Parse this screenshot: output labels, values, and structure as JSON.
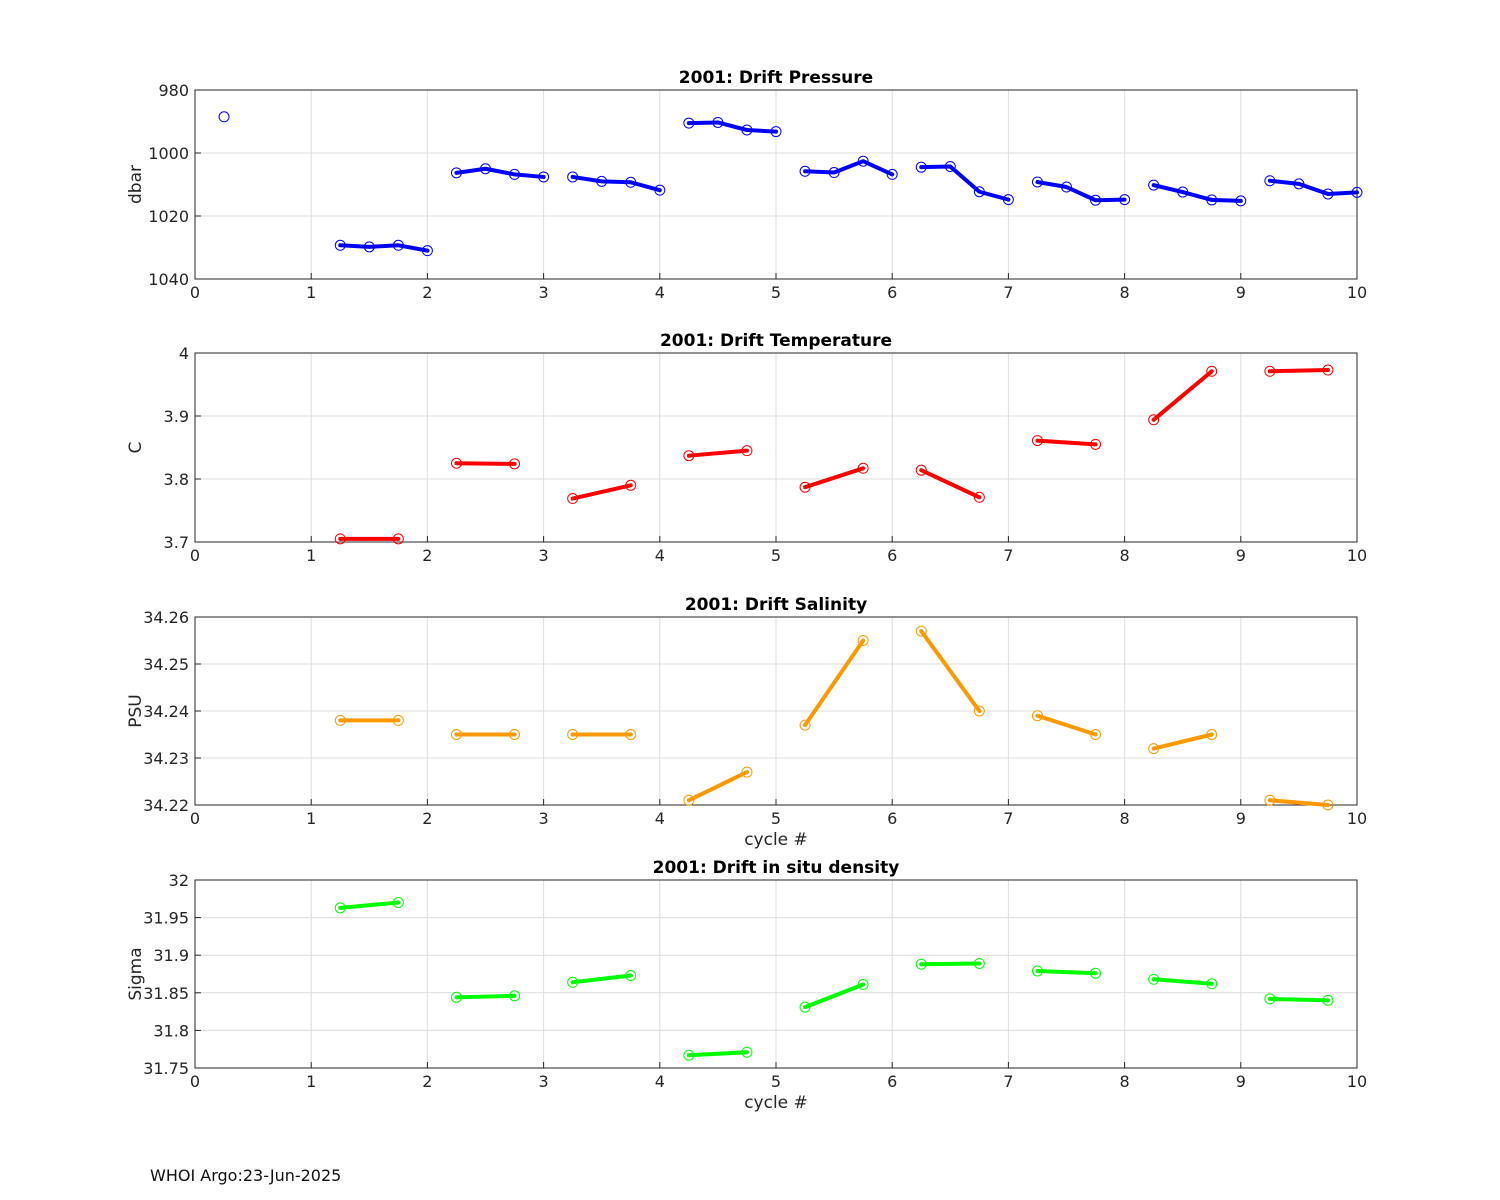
{
  "footer": {
    "text": "WHOI Argo:23-Jun-2025"
  },
  "chart_data": [
    {
      "type": "line",
      "title": "2001: Drift Pressure",
      "xlabel": "",
      "ylabel": "dbar",
      "xlim": [
        0,
        10
      ],
      "ylim": [
        980,
        1040
      ],
      "y_reversed": true,
      "xticks": [
        "0",
        "1",
        "2",
        "3",
        "4",
        "5",
        "6",
        "7",
        "8",
        "9",
        "10"
      ],
      "yticks": [
        "980",
        "1000",
        "1020",
        "1040"
      ],
      "ytick_values": [
        980,
        1000,
        1020,
        1040
      ],
      "grid": true,
      "color": "#0000ff",
      "segments": [
        {
          "x": [
            0.25
          ],
          "y": [
            988.5
          ]
        },
        {
          "x": [
            1.25,
            1.5,
            1.75,
            2.0
          ],
          "y": [
            1029.3,
            1029.8,
            1029.3,
            1031.0
          ]
        },
        {
          "x": [
            2.25,
            2.5,
            2.75,
            3.0
          ],
          "y": [
            1006.3,
            1005.0,
            1006.8,
            1007.6
          ]
        },
        {
          "x": [
            3.25,
            3.5,
            3.75,
            4.0
          ],
          "y": [
            1007.6,
            1009.0,
            1009.3,
            1011.8
          ]
        },
        {
          "x": [
            4.25,
            4.5,
            4.75,
            5.0
          ],
          "y": [
            990.5,
            990.3,
            992.7,
            993.2
          ]
        },
        {
          "x": [
            5.25,
            5.5,
            5.75,
            6.0
          ],
          "y": [
            1005.8,
            1006.2,
            1002.6,
            1006.8
          ]
        },
        {
          "x": [
            6.25,
            6.5,
            6.75,
            7.0
          ],
          "y": [
            1004.5,
            1004.3,
            1012.3,
            1014.8
          ]
        },
        {
          "x": [
            7.25,
            7.5,
            7.75,
            8.0
          ],
          "y": [
            1009.2,
            1010.8,
            1015.0,
            1014.8
          ]
        },
        {
          "x": [
            8.25,
            8.5,
            8.75,
            9.0
          ],
          "y": [
            1010.2,
            1012.4,
            1014.9,
            1015.2
          ]
        },
        {
          "x": [
            9.25,
            9.5,
            9.75,
            10.0
          ],
          "y": [
            1008.8,
            1009.8,
            1013.0,
            1012.5
          ]
        }
      ]
    },
    {
      "type": "line",
      "title": "2001: Drift Temperature",
      "xlabel": "",
      "ylabel": "C",
      "xlim": [
        0,
        10
      ],
      "ylim": [
        3.7,
        4.0
      ],
      "y_reversed": false,
      "xticks": [
        "0",
        "1",
        "2",
        "3",
        "4",
        "5",
        "6",
        "7",
        "8",
        "9",
        "10"
      ],
      "yticks": [
        "3.7",
        "3.8",
        "3.9",
        "4"
      ],
      "ytick_values": [
        3.7,
        3.8,
        3.9,
        4.0
      ],
      "grid": true,
      "color": "#ff0000",
      "segments": [
        {
          "x": [
            1.25,
            1.75
          ],
          "y": [
            3.705,
            3.705
          ]
        },
        {
          "x": [
            2.25,
            2.75
          ],
          "y": [
            3.825,
            3.824
          ]
        },
        {
          "x": [
            3.25,
            3.75
          ],
          "y": [
            3.769,
            3.79
          ]
        },
        {
          "x": [
            4.25,
            4.75
          ],
          "y": [
            3.837,
            3.845
          ]
        },
        {
          "x": [
            5.25,
            5.75
          ],
          "y": [
            3.787,
            3.817
          ]
        },
        {
          "x": [
            6.25,
            6.75
          ],
          "y": [
            3.814,
            3.771
          ]
        },
        {
          "x": [
            7.25,
            7.75
          ],
          "y": [
            3.861,
            3.855
          ]
        },
        {
          "x": [
            8.25,
            8.75
          ],
          "y": [
            3.894,
            3.971
          ]
        },
        {
          "x": [
            9.25,
            9.75
          ],
          "y": [
            3.971,
            3.973
          ]
        }
      ]
    },
    {
      "type": "line",
      "title": "2001: Drift Salinity",
      "xlabel": "cycle #",
      "ylabel": "PSU",
      "xlim": [
        0,
        10
      ],
      "ylim": [
        34.22,
        34.26
      ],
      "y_reversed": false,
      "xticks": [
        "0",
        "1",
        "2",
        "3",
        "4",
        "5",
        "6",
        "7",
        "8",
        "9",
        "10"
      ],
      "yticks": [
        "34.22",
        "34.23",
        "34.24",
        "34.25",
        "34.26"
      ],
      "ytick_values": [
        34.22,
        34.23,
        34.24,
        34.25,
        34.26
      ],
      "grid": true,
      "color": "#ff9900",
      "segments": [
        {
          "x": [
            1.25,
            1.75
          ],
          "y": [
            34.238,
            34.238
          ]
        },
        {
          "x": [
            2.25,
            2.75
          ],
          "y": [
            34.235,
            34.235
          ]
        },
        {
          "x": [
            3.25,
            3.75
          ],
          "y": [
            34.235,
            34.235
          ]
        },
        {
          "x": [
            4.25,
            4.75
          ],
          "y": [
            34.221,
            34.227
          ]
        },
        {
          "x": [
            5.25,
            5.75
          ],
          "y": [
            34.237,
            34.255
          ]
        },
        {
          "x": [
            6.25,
            6.75
          ],
          "y": [
            34.257,
            34.24
          ]
        },
        {
          "x": [
            7.25,
            7.75
          ],
          "y": [
            34.239,
            34.235
          ]
        },
        {
          "x": [
            8.25,
            8.75
          ],
          "y": [
            34.232,
            34.235
          ]
        },
        {
          "x": [
            9.25,
            9.75
          ],
          "y": [
            34.221,
            34.22
          ]
        }
      ]
    },
    {
      "type": "line",
      "title": "2001: Drift in situ density",
      "xlabel": "cycle #",
      "ylabel": "Sigma",
      "xlim": [
        0,
        10
      ],
      "ylim": [
        31.75,
        32.0
      ],
      "y_reversed": false,
      "xticks": [
        "0",
        "1",
        "2",
        "3",
        "4",
        "5",
        "6",
        "7",
        "8",
        "9",
        "10"
      ],
      "yticks": [
        "31.75",
        "31.8",
        "31.85",
        "31.9",
        "31.95",
        "32"
      ],
      "ytick_values": [
        31.75,
        31.8,
        31.85,
        31.9,
        31.95,
        32.0
      ],
      "grid": true,
      "color": "#00ff00",
      "segments": [
        {
          "x": [
            1.25,
            1.75
          ],
          "y": [
            31.963,
            31.97
          ]
        },
        {
          "x": [
            2.25,
            2.75
          ],
          "y": [
            31.844,
            31.846
          ]
        },
        {
          "x": [
            3.25,
            3.75
          ],
          "y": [
            31.864,
            31.873
          ]
        },
        {
          "x": [
            4.25,
            4.75
          ],
          "y": [
            31.767,
            31.771
          ]
        },
        {
          "x": [
            5.25,
            5.75
          ],
          "y": [
            31.831,
            31.861
          ]
        },
        {
          "x": [
            6.25,
            6.75
          ],
          "y": [
            31.888,
            31.889
          ]
        },
        {
          "x": [
            7.25,
            7.75
          ],
          "y": [
            31.879,
            31.876
          ]
        },
        {
          "x": [
            8.25,
            8.75
          ],
          "y": [
            31.868,
            31.862
          ]
        },
        {
          "x": [
            9.25,
            9.75
          ],
          "y": [
            31.842,
            31.84
          ]
        }
      ]
    }
  ]
}
